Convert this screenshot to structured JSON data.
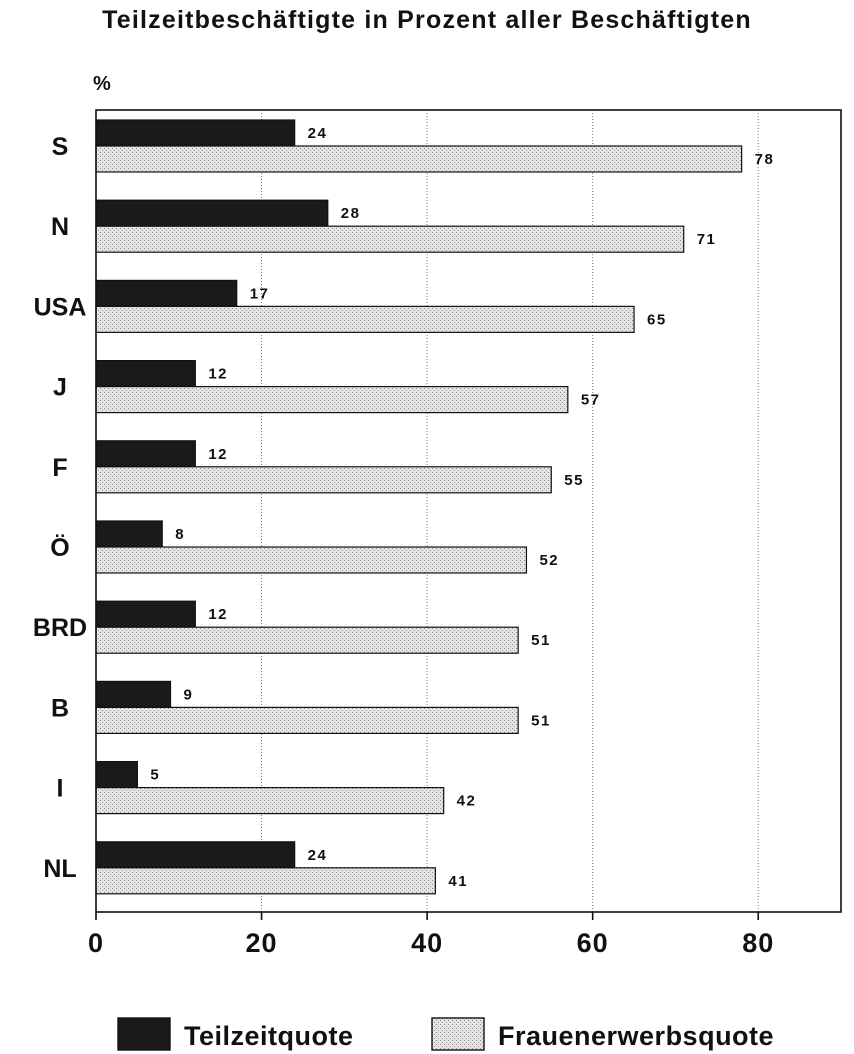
{
  "chart_data": {
    "type": "bar",
    "orientation": "horizontal",
    "title": "Teilzeitbeschäftigte in Prozent aller Beschäftigten",
    "unit_label": "%",
    "xlim": [
      0,
      90
    ],
    "x_ticks": [
      0,
      20,
      40,
      60,
      80
    ],
    "grid": "vertical dotted lines at 40, 60, 80",
    "categories": [
      "S",
      "N",
      "USA",
      "J",
      "F",
      "Ö",
      "BRD",
      "B",
      "I",
      "NL"
    ],
    "series": [
      {
        "name": "Teilzeitquote",
        "color": "#1a1a1a",
        "values": [
          24,
          28,
          17,
          12,
          12,
          8,
          12,
          9,
          5,
          24
        ]
      },
      {
        "name": "Frauenerwerbsquote",
        "color": "#d6d6d6",
        "values": [
          78,
          71,
          65,
          57,
          55,
          52,
          51,
          51,
          42,
          41
        ]
      }
    ],
    "legend_position": "bottom"
  }
}
